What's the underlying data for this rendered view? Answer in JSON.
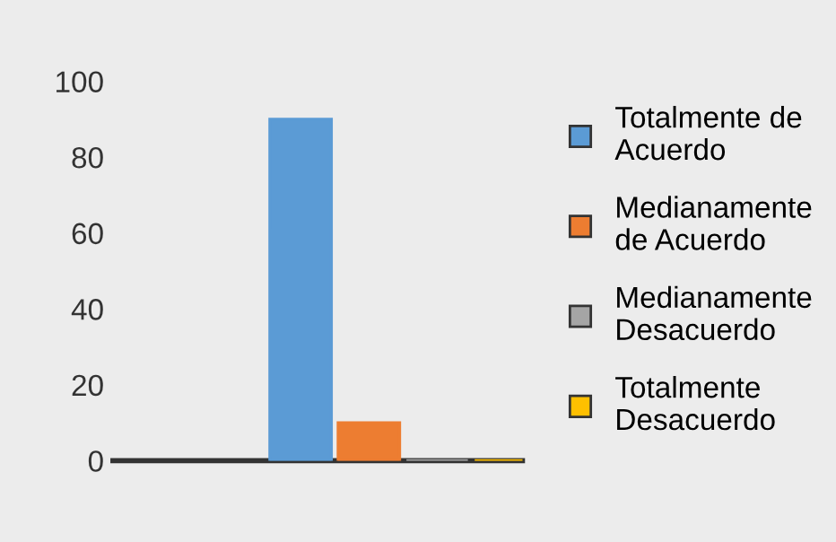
{
  "chart_data": {
    "type": "bar",
    "categories": [
      null
    ],
    "series": [
      {
        "name": "Totalmente de\nAcuerdo",
        "color": "#5b9bd5",
        "values": [
          90
        ]
      },
      {
        "name": "Medianamente\nde Acuerdo",
        "color": "#ed7d31",
        "values": [
          10
        ]
      },
      {
        "name": "Medianamente\nDesacuerdo",
        "color": "#a5a5a5",
        "values": [
          0
        ]
      },
      {
        "name": "Totalmente\nDesacuerdo",
        "color": "#ffc000",
        "values": [
          0
        ]
      }
    ],
    "ylim": [
      0,
      100
    ],
    "yticks": [
      0,
      20,
      40,
      60,
      80,
      100
    ],
    "grid": false,
    "legend": "right"
  }
}
